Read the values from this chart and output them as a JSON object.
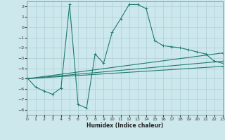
{
  "xlabel": "Humidex (Indice chaleur)",
  "bg_color": "#cde8ec",
  "grid_color": "#aacdd4",
  "line_color": "#1e7b70",
  "xlim": [
    0,
    23
  ],
  "ylim": [
    -8.5,
    2.5
  ],
  "xticks": [
    0,
    1,
    2,
    3,
    4,
    5,
    6,
    7,
    8,
    9,
    10,
    11,
    12,
    13,
    14,
    15,
    16,
    17,
    18,
    19,
    20,
    21,
    22,
    23
  ],
  "yticks": [
    -8,
    -7,
    -6,
    -5,
    -4,
    -3,
    -2,
    -1,
    0,
    1,
    2
  ],
  "line1_x": [
    0,
    1,
    2,
    3,
    4,
    5,
    6,
    7,
    8,
    9,
    10,
    11,
    12,
    13,
    14,
    15,
    16,
    17,
    18,
    19,
    20,
    21,
    22,
    23
  ],
  "line1_y": [
    -4.9,
    -5.8,
    -6.2,
    -6.5,
    -5.9,
    2.2,
    -7.5,
    -7.85,
    -2.6,
    -3.5,
    -0.5,
    0.8,
    2.2,
    2.2,
    1.8,
    -1.3,
    -1.8,
    -1.9,
    -2.0,
    -2.2,
    -2.4,
    -2.6,
    -3.3,
    -3.5
  ],
  "line2_x": [
    0,
    23
  ],
  "line2_y": [
    -5.0,
    -2.5
  ],
  "line3_x": [
    0,
    23
  ],
  "line3_y": [
    -5.0,
    -3.3
  ],
  "line4_x": [
    0,
    23
  ],
  "line4_y": [
    -5.0,
    -3.8
  ]
}
